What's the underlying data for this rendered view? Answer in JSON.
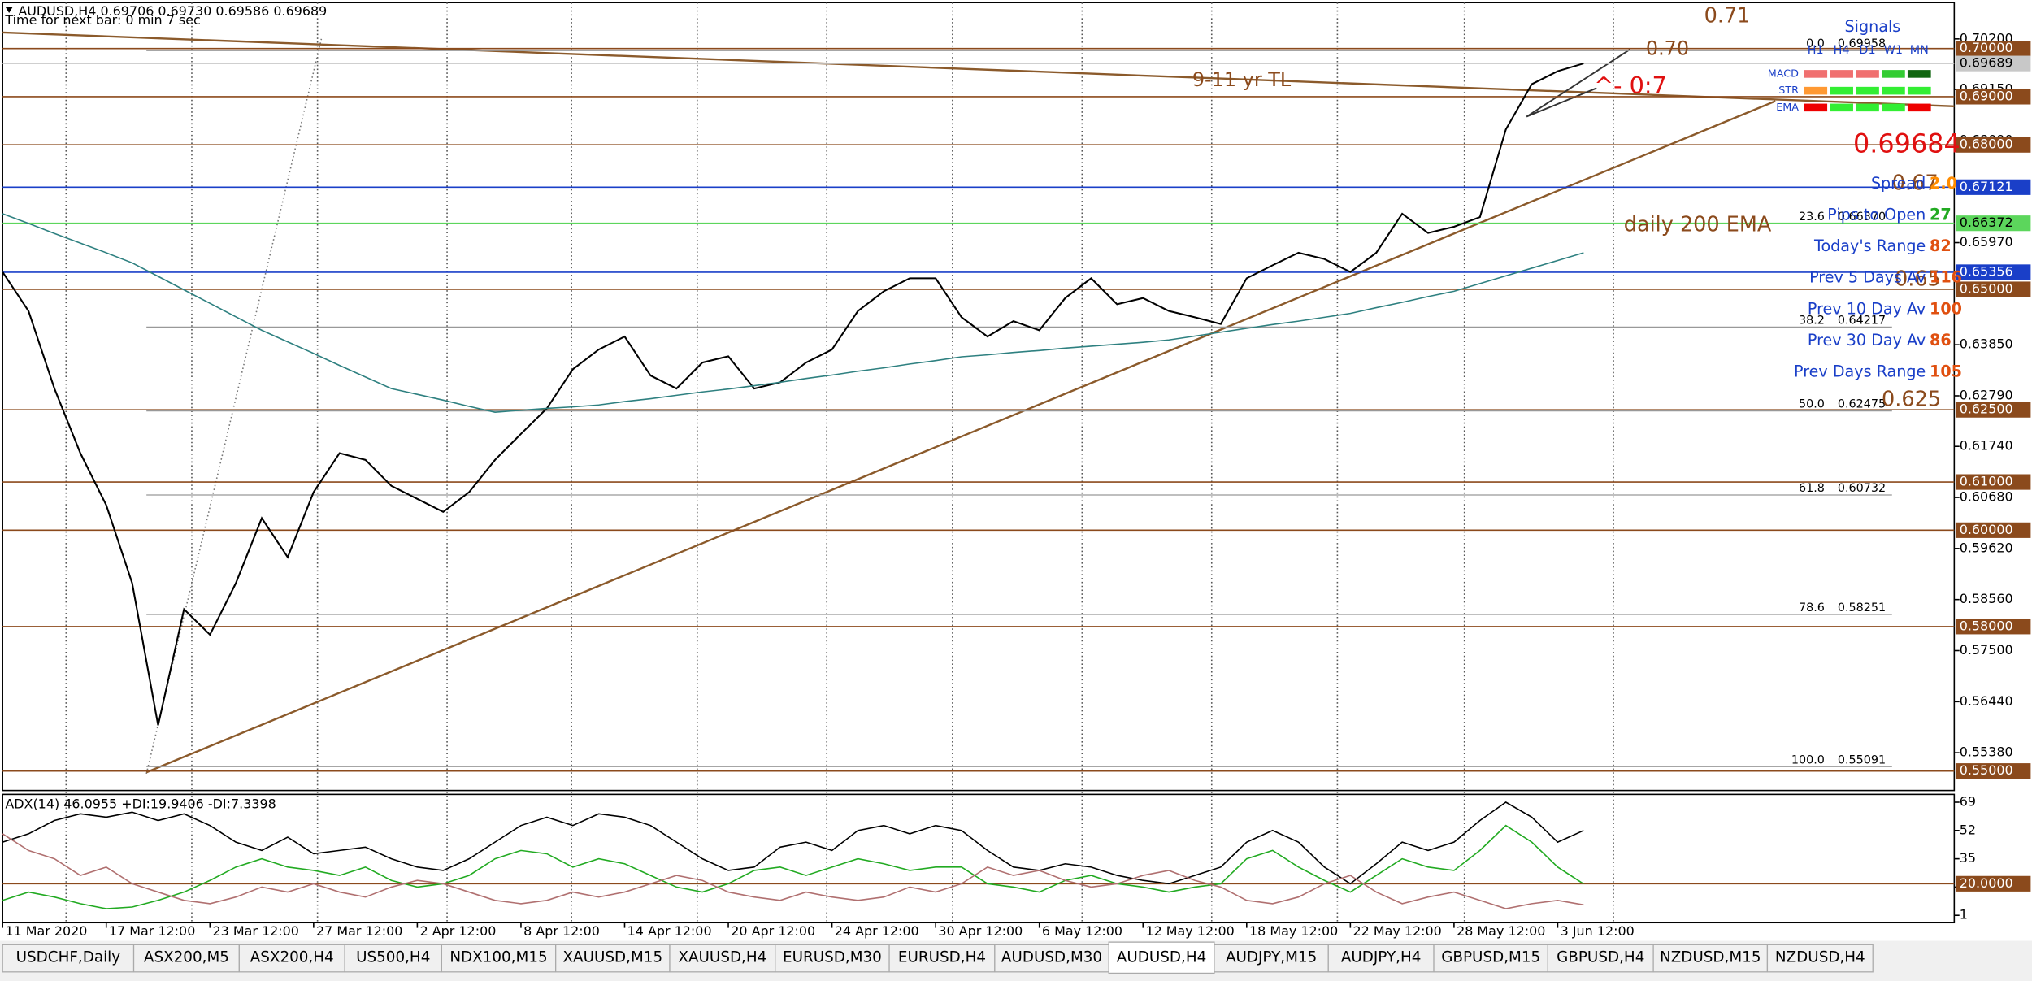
{
  "chart_data": [
    {
      "type": "line",
      "title": "AUDUSD,H4  0.69706 0.69730 0.69586 0.69689",
      "subtitle": "Time for next bar: 0 min 7 sec",
      "categories": [
        "11 Mar 2020",
        null,
        null,
        null,
        "17 Mar 12:00",
        null,
        null,
        null,
        "23 Mar 12:00",
        null,
        null,
        null,
        "27 Mar 12:00",
        null,
        null,
        null,
        "2 Apr 12:00",
        null,
        null,
        null,
        "8 Apr 12:00",
        null,
        null,
        null,
        "14 Apr 12:00",
        null,
        null,
        null,
        "20 Apr 12:00",
        null,
        null,
        null,
        "24 Apr 12:00",
        null,
        null,
        null,
        "30 Apr 12:00",
        null,
        null,
        null,
        "6 May 12:00",
        null,
        null,
        null,
        "12 May 12:00",
        null,
        null,
        null,
        "18 May 12:00",
        null,
        null,
        null,
        "22 May 12:00",
        null,
        null,
        null,
        "28 May 12:00",
        null,
        null,
        null,
        "3 Jun 12:00",
        null
      ],
      "series": [
        {
          "color": "#000000",
          "values": [
            0.6536,
            0.6455,
            0.6294,
            0.616,
            0.6052,
            0.589,
            0.5595,
            0.5836,
            0.5783,
            0.589,
            0.6025,
            0.5944,
            0.6079,
            0.616,
            0.6146,
            0.6092,
            0.6065,
            0.6038,
            0.6079,
            0.6146,
            0.62,
            0.6253,
            0.6334,
            0.6375,
            0.6402,
            0.6321,
            0.6294,
            0.6348,
            0.6361,
            0.6294,
            0.6307,
            0.6348,
            0.6375,
            0.6455,
            0.6496,
            0.6523,
            0.6523,
            0.6442,
            0.6402,
            0.6434,
            0.6415,
            0.6482,
            0.6523,
            0.6469,
            0.6482,
            0.6455,
            0.6442,
            0.6428,
            0.6523,
            0.655,
            0.6576,
            0.6563,
            0.6536,
            0.6576,
            0.6657,
            0.6617,
            0.663,
            0.665,
            0.6832,
            0.6926,
            0.6953,
            0.6969
          ]
        },
        {
          "color": "#2e8080",
          "values": [
            0.6657,
            0.6637,
            0.6616,
            0.6596,
            0.6576,
            0.6555,
            0.6527,
            0.6499,
            0.6471,
            0.6443,
            0.6415,
            0.6391,
            0.6367,
            0.6342,
            0.6318,
            0.6294,
            0.6282,
            0.627,
            0.6257,
            0.6245,
            0.6249,
            0.6253,
            0.6256,
            0.626,
            0.6267,
            0.6273,
            0.628,
            0.6287,
            0.6293,
            0.63,
            0.6307,
            0.6315,
            0.6322,
            0.633,
            0.6337,
            0.6345,
            0.6352,
            0.636,
            0.6364,
            0.6369,
            0.6373,
            0.6378,
            0.6382,
            0.6386,
            0.639,
            0.6395,
            0.6403,
            0.6411,
            0.6419,
            0.6427,
            0.6434,
            0.6442,
            0.645,
            0.6462,
            0.6473,
            0.6485,
            0.6496,
            0.6512,
            0.6528,
            0.6544,
            0.656,
            0.6576
          ]
        }
      ],
      "ylim": [
        0.54596,
        0.70953
      ],
      "yticks": [
        {
          "value": 0.702,
          "label": "0.70200"
        },
        {
          "value": 0.6915,
          "label": "0.69150"
        },
        {
          "value": 0.6809,
          "label": "0.68090"
        },
        {
          "value": 0.6597,
          "label": "0.65970"
        },
        {
          "value": 0.6385,
          "label": "0.63850"
        },
        {
          "value": 0.6279,
          "label": "0.62790"
        },
        {
          "value": 0.6174,
          "label": "0.61740"
        },
        {
          "value": 0.6068,
          "label": "0.60680"
        },
        {
          "value": 0.5962,
          "label": "0.59620"
        },
        {
          "value": 0.5856,
          "label": "0.58560"
        },
        {
          "value": 0.575,
          "label": "0.57500"
        },
        {
          "value": 0.5644,
          "label": "0.56440"
        },
        {
          "value": 0.5538,
          "label": "0.55380"
        }
      ],
      "levels": [
        {
          "value": 0.7,
          "label": "0.70000",
          "color": "#8b4a1c"
        },
        {
          "value": 0.69689,
          "label": "0.69689",
          "color": "#c8c8c8"
        },
        {
          "value": 0.69,
          "label": "0.69000",
          "color": "#8b4a1c"
        },
        {
          "value": 0.68,
          "label": "0.68000",
          "color": "#8b4a1c"
        },
        {
          "value": 0.67121,
          "label": "0.67121",
          "color": "#1a3fc8"
        },
        {
          "value": 0.66372,
          "label": "0.66372",
          "color": "#5cd65c"
        },
        {
          "value": 0.65356,
          "label": "0.65356",
          "color": "#1a3fc8"
        },
        {
          "value": 0.65,
          "label": "0.65000",
          "color": "#8b4a1c"
        },
        {
          "value": 0.625,
          "label": "0.62500",
          "color": "#8b4a1c"
        },
        {
          "value": 0.61,
          "label": "0.61000",
          "color": "#8b4a1c"
        },
        {
          "value": 0.6,
          "label": "0.60000",
          "color": "#8b4a1c"
        },
        {
          "value": 0.58,
          "label": "0.58000",
          "color": "#8b4a1c"
        },
        {
          "value": 0.55,
          "label": "0.55000",
          "color": "#8b4a1c"
        }
      ],
      "fib": [
        {
          "level": "0.0",
          "value": 0.69958
        },
        {
          "level": "23.6",
          "value": 0.6637,
          "label": "0.66370"
        },
        {
          "level": "38.2",
          "value": 0.64217
        },
        {
          "level": "50.0",
          "value": 0.62475
        },
        {
          "level": "61.8",
          "value": 0.60732
        },
        {
          "level": "78.6",
          "value": 0.58251
        },
        {
          "level": "100.0",
          "value": 0.55091
        }
      ],
      "annotations": [
        {
          "text": "0.71",
          "color": "#8b4a1c"
        },
        {
          "text": "0.70",
          "color": "#8b4a1c"
        },
        {
          "text": "9-11 yr TL",
          "color": "#8b4a1c"
        },
        {
          "text": "^- 0:7",
          "color": "#e01010"
        },
        {
          "text": "0.69684",
          "color": "#e01010"
        },
        {
          "text": "daily 200 EMA",
          "color": "#8b4a1c"
        },
        {
          "text": "0.625",
          "color": "#8b4a1c"
        },
        {
          "text": "0.67",
          "color": "#8b4a1c"
        },
        {
          "text": "0.65",
          "color": "#8b4a1c"
        }
      ]
    },
    {
      "type": "line",
      "title": "ADX(14) 46.0955 +DI:19.9406 -DI:7.3398",
      "series": [
        {
          "color": "#000000",
          "values": [
            45,
            50,
            58,
            62,
            60,
            63,
            58,
            62,
            55,
            45,
            40,
            48,
            38,
            40,
            42,
            35,
            30,
            28,
            35,
            45,
            55,
            60,
            55,
            62,
            60,
            55,
            45,
            35,
            28,
            30,
            42,
            45,
            40,
            52,
            55,
            50,
            55,
            52,
            40,
            30,
            28,
            32,
            30,
            25,
            22,
            20,
            25,
            30,
            45,
            52,
            45,
            30,
            20,
            32,
            45,
            40,
            45,
            58,
            69,
            60,
            45,
            52
          ]
        },
        {
          "color": "#22aa22",
          "values": [
            10,
            15,
            12,
            8,
            5,
            6,
            10,
            15,
            22,
            30,
            35,
            30,
            28,
            25,
            30,
            22,
            18,
            20,
            25,
            35,
            40,
            38,
            30,
            35,
            32,
            25,
            18,
            15,
            20,
            28,
            30,
            25,
            30,
            35,
            32,
            28,
            30,
            30,
            20,
            18,
            15,
            22,
            25,
            20,
            18,
            15,
            18,
            20,
            35,
            40,
            30,
            22,
            15,
            25,
            35,
            30,
            28,
            40,
            55,
            45,
            30,
            19.9
          ]
        },
        {
          "color": "#b07070",
          "values": [
            50,
            40,
            35,
            25,
            30,
            20,
            15,
            10,
            8,
            12,
            18,
            15,
            20,
            15,
            12,
            18,
            22,
            20,
            15,
            10,
            8,
            10,
            15,
            12,
            15,
            20,
            25,
            22,
            15,
            12,
            10,
            15,
            12,
            10,
            12,
            18,
            15,
            20,
            30,
            25,
            28,
            22,
            18,
            20,
            25,
            28,
            22,
            18,
            10,
            8,
            12,
            20,
            25,
            15,
            8,
            12,
            15,
            10,
            5,
            8,
            10,
            7.3
          ]
        }
      ],
      "ylim": [
        -3.4,
        73.7
      ],
      "yticks": [
        69,
        52,
        35,
        18,
        1
      ],
      "levels": [
        {
          "value": 20,
          "label": "20.0000",
          "color": "#8b4a1c"
        }
      ]
    }
  ],
  "signals": {
    "title": "Signals",
    "columns": [
      "H1",
      "H4",
      "D1",
      "W1",
      "MN"
    ],
    "rows": [
      {
        "name": "MACD",
        "colors": [
          "#f07070",
          "#f07070",
          "#f07070",
          "#33cc33",
          "#116611"
        ]
      },
      {
        "name": "STR",
        "colors": [
          "#ff9933",
          "#33ee33",
          "#33ee33",
          "#33ee33",
          "#33ee33"
        ]
      },
      {
        "name": "EMA",
        "colors": [
          "#ee0000",
          "#33ee33",
          "#33ee33",
          "#33ee33",
          "#ee0000"
        ]
      }
    ]
  },
  "info": [
    {
      "label": "Spread",
      "value": "2.0",
      "color": "#ff8c00"
    },
    {
      "label": "Pips to Open",
      "value": "27",
      "color": "#22aa22"
    },
    {
      "label": "Today's Range",
      "value": "82",
      "color": "#e05010"
    },
    {
      "label": "Prev 5 Days Av",
      "value": "116",
      "color": "#e05010"
    },
    {
      "label": "Prev 10 Day Av",
      "value": "100",
      "color": "#e05010"
    },
    {
      "label": "Prev 30 Day Av",
      "value": "86",
      "color": "#e05010"
    },
    {
      "label": "Prev Days Range",
      "value": "105",
      "color": "#e05010"
    }
  ],
  "tabs": {
    "items": [
      "USDCHF,Daily",
      "ASX200,M5",
      "ASX200,H4",
      "US500,H4",
      "NDX100,M15",
      "XAUUSD,M15",
      "XAUUSD,H4",
      "EURUSD,M30",
      "EURUSD,H4",
      "AUDUSD,M30",
      "AUDUSD,H4",
      "AUDJPY,M15",
      "AUDJPY,H4",
      "GBPUSD,M15",
      "GBPUSD,H4",
      "NZDUSD,M15",
      "NZDUSD,H4"
    ],
    "active": 10
  }
}
